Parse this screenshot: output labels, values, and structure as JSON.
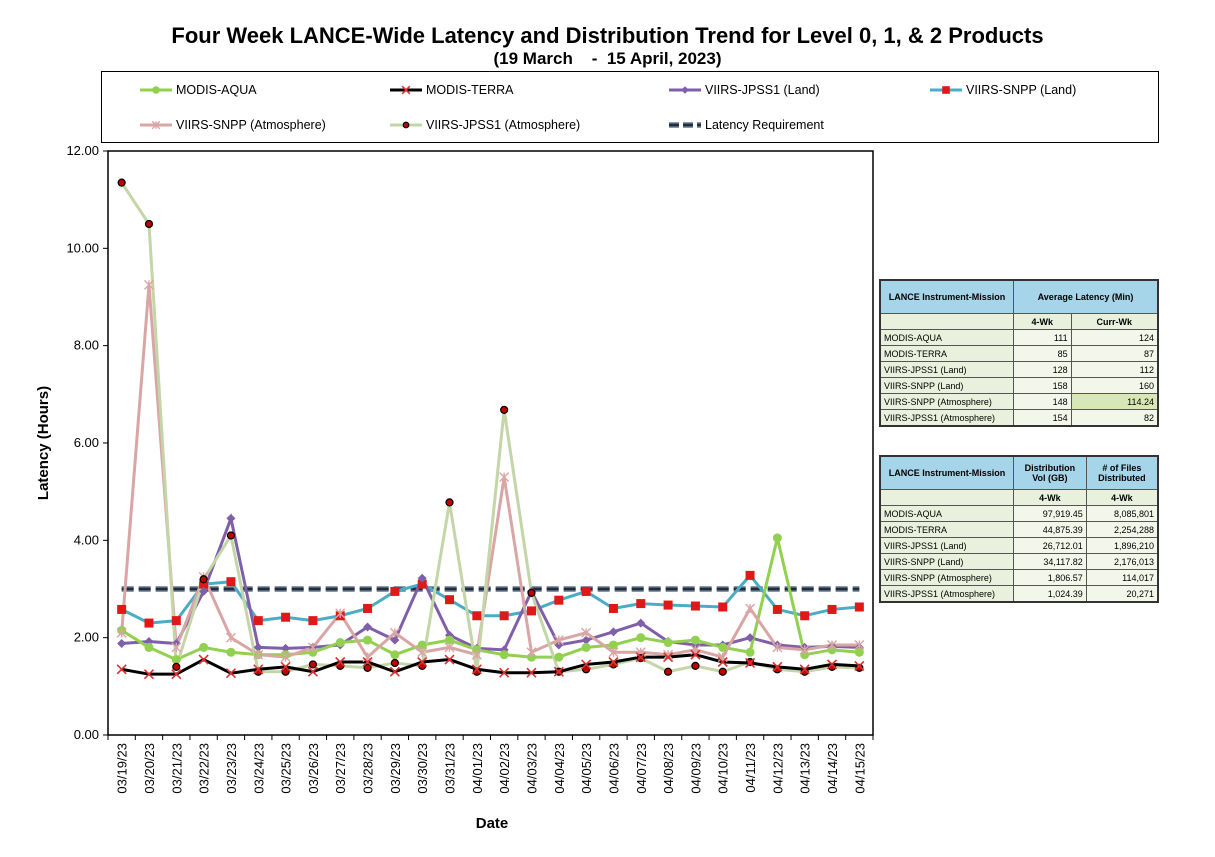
{
  "chart_data": {
    "type": "line",
    "title": "Four Week LANCE-Wide Latency and Distribution Trend for Level 0, 1, & 2 Products",
    "subtitle": "(19 March    -  15 April, 2023)",
    "xlabel": "Date",
    "ylabel": "Latency (Hours)",
    "ylim": [
      0,
      12
    ],
    "yticks": [
      "0.00",
      "2.00",
      "4.00",
      "6.00",
      "8.00",
      "10.00",
      "12.00"
    ],
    "grid": false,
    "legend_position": "top",
    "categories": [
      "03/19/23",
      "03/20/23",
      "03/21/23",
      "03/22/23",
      "03/23/23",
      "03/24/23",
      "03/25/23",
      "03/26/23",
      "03/27/23",
      "03/28/23",
      "03/29/23",
      "03/30/23",
      "03/31/23",
      "04/01/23",
      "04/02/23",
      "04/03/23",
      "04/04/23",
      "04/05/23",
      "04/06/23",
      "04/07/23",
      "04/08/23",
      "04/09/23",
      "04/10/23",
      "04/11/23",
      "04/12/23",
      "04/13/23",
      "04/14/23",
      "04/15/23"
    ],
    "series": [
      {
        "name": "MODIS-AQUA",
        "color": "#92d050",
        "marker": "circle",
        "values": [
          2.15,
          1.8,
          1.55,
          1.8,
          1.7,
          1.65,
          1.65,
          1.7,
          1.9,
          1.95,
          1.65,
          1.85,
          1.95,
          1.75,
          1.65,
          1.6,
          1.6,
          1.8,
          1.85,
          2.0,
          1.9,
          1.95,
          1.8,
          1.7,
          4.05,
          1.65,
          1.75,
          1.7
        ]
      },
      {
        "name": "MODIS-TERRA",
        "color": "#000000",
        "marker": "x",
        "values": [
          1.35,
          1.25,
          1.25,
          1.55,
          1.27,
          1.35,
          1.4,
          1.3,
          1.5,
          1.5,
          1.3,
          1.5,
          1.55,
          1.35,
          1.28,
          1.28,
          1.3,
          1.45,
          1.5,
          1.6,
          1.6,
          1.65,
          1.5,
          1.48,
          1.4,
          1.35,
          1.45,
          1.42
        ]
      },
      {
        "name": "VIIRS-JPSS1 (Land)",
        "color": "#7f5fa8",
        "marker": "diamond",
        "values": [
          1.88,
          1.92,
          1.88,
          2.95,
          4.45,
          1.8,
          1.78,
          1.8,
          1.85,
          2.22,
          1.95,
          3.22,
          2.05,
          1.78,
          1.75,
          2.95,
          1.85,
          1.95,
          2.12,
          2.3,
          1.92,
          1.85,
          1.85,
          2.0,
          1.85,
          1.8,
          1.82,
          1.8
        ]
      },
      {
        "name": "VIIRS-SNPP (Land)",
        "color": "#4bacc6",
        "marker": "square",
        "values": [
          2.58,
          2.3,
          2.35,
          3.1,
          3.15,
          2.35,
          2.42,
          2.35,
          2.45,
          2.6,
          2.95,
          3.1,
          2.78,
          2.45,
          2.45,
          2.55,
          2.77,
          2.95,
          2.6,
          2.7,
          2.67,
          2.65,
          2.63,
          3.28,
          2.58,
          2.45,
          2.58,
          2.63
        ]
      },
      {
        "name": "VIIRS-SNPP (Atmosphere)",
        "color": "#d9a5a5",
        "marker": "star",
        "values": [
          2.1,
          9.25,
          1.8,
          3.25,
          2.0,
          1.65,
          1.6,
          1.8,
          2.5,
          1.6,
          2.1,
          1.7,
          1.8,
          1.65,
          5.3,
          1.7,
          1.95,
          2.1,
          1.7,
          1.7,
          1.65,
          1.75,
          1.6,
          2.6,
          1.8,
          1.75,
          1.85,
          1.85
        ]
      },
      {
        "name": "VIIRS-JPSS1 (Atmosphere)",
        "color": "#c4d5a8",
        "marker": "dot",
        "values": [
          11.35,
          10.5,
          1.4,
          3.2,
          4.1,
          1.3,
          1.3,
          1.45,
          1.42,
          1.38,
          1.48,
          1.42,
          4.78,
          1.3,
          6.68,
          2.92,
          1.3,
          1.35,
          1.45,
          1.58,
          1.3,
          1.42,
          1.3,
          1.5,
          1.35,
          1.3,
          1.4,
          1.38
        ]
      },
      {
        "name": "Latency Requirement",
        "color": "#1f2d3d",
        "marker": "none",
        "values": [
          3,
          3,
          3,
          3,
          3,
          3,
          3,
          3,
          3,
          3,
          3,
          3,
          3,
          3,
          3,
          3,
          3,
          3,
          3,
          3,
          3,
          3,
          3,
          3,
          3,
          3,
          3,
          3
        ]
      }
    ]
  },
  "latency_table": {
    "head1": [
      "LANCE Instrument-Mission",
      "Average Latency (Min)"
    ],
    "head2": [
      "4-Wk",
      "Curr-Wk"
    ],
    "rows": [
      [
        "MODIS-AQUA",
        "111",
        "124"
      ],
      [
        "MODIS-TERRA",
        "85",
        "87"
      ],
      [
        "VIIRS-JPSS1 (Land)",
        "128",
        "112"
      ],
      [
        "VIIRS-SNPP (Land)",
        "158",
        "160"
      ],
      [
        "VIIRS-SNPP (Atmosphere)",
        "148",
        "114.24"
      ],
      [
        "VIIRS-JPSS1 (Atmosphere)",
        "154",
        "82"
      ]
    ]
  },
  "distribution_table": {
    "head1": [
      "LANCE Instrument-Mission",
      "Distribution Vol (GB)",
      "# of Files Distributed"
    ],
    "head2": [
      "4-Wk",
      "4-Wk"
    ],
    "rows": [
      [
        "MODIS-AQUA",
        "97,919.45",
        "8,085,801"
      ],
      [
        "MODIS-TERRA",
        "44,875.39",
        "2,254,288"
      ],
      [
        "VIIRS-JPSS1 (Land)",
        "26,712.01",
        "1,896,210"
      ],
      [
        "VIIRS-SNPP (Land)",
        "34,117.82",
        "2,176,013"
      ],
      [
        "VIIRS-SNPP (Atmosphere)",
        "1,806.57",
        "114,017"
      ],
      [
        "VIIRS-JPSS1 (Atmosphere)",
        "1,024.39",
        "20,271"
      ]
    ]
  }
}
